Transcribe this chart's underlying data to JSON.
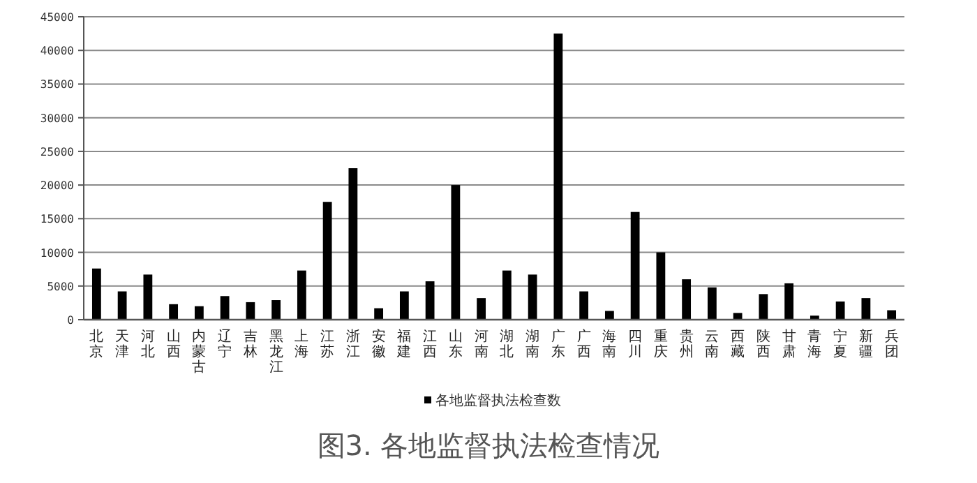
{
  "chart_data": {
    "type": "bar",
    "title": "图3. 各地监督执法检查情况",
    "categories": [
      "北京",
      "天津",
      "河北",
      "山西",
      "内蒙古",
      "辽宁",
      "吉林",
      "黑龙江",
      "上海",
      "江苏",
      "浙江",
      "安徽",
      "福建",
      "江西",
      "山东",
      "河南",
      "湖北",
      "湖南",
      "广东",
      "广西",
      "海南",
      "四川",
      "重庆",
      "贵州",
      "云南",
      "西藏",
      "陕西",
      "甘肃",
      "青海",
      "宁夏",
      "新疆",
      "兵团"
    ],
    "series": [
      {
        "name": "各地监督执法检查数",
        "color": "#000000",
        "values": [
          7600,
          4200,
          6700,
          2300,
          2000,
          3500,
          2600,
          2900,
          7300,
          17500,
          22500,
          1700,
          4200,
          5700,
          20000,
          3200,
          7300,
          6700,
          42500,
          4200,
          1300,
          16000,
          10000,
          6000,
          4800,
          1000,
          3800,
          5400,
          600,
          2700,
          3200,
          1400
        ]
      }
    ],
    "ylim": [
      0,
      45000
    ],
    "yticks": [
      0,
      5000,
      10000,
      15000,
      20000,
      25000,
      30000,
      35000,
      40000,
      45000
    ],
    "grid": "y",
    "legend": "bottom"
  }
}
